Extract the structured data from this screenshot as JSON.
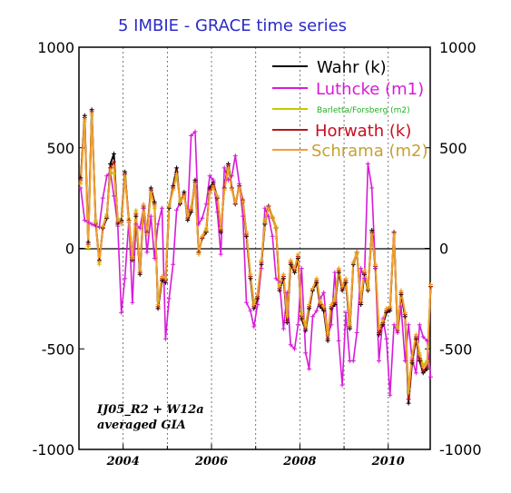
{
  "chart_data": {
    "type": "line",
    "title": "5 IMBIE - GRACE time series",
    "xlabel": "",
    "ylabel": "",
    "xlim": [
      2003.0,
      2010.95
    ],
    "ylim": [
      -1000,
      1000
    ],
    "x_ticks": [
      2004,
      2006,
      2008,
      2010
    ],
    "y_ticks_left": [
      "1000",
      "500",
      "0",
      "-500",
      "-1000"
    ],
    "y_ticks_right": [
      "1000",
      "500",
      "0",
      "-500",
      "-1000"
    ],
    "grid": "vertical dotted lines at yearly intervals",
    "legend_position": "top-right",
    "annotation": [
      "IJ05_R2 + W12a",
      "averaged GIA"
    ],
    "x": [
      2003.04,
      2003.13,
      2003.21,
      2003.29,
      2003.38,
      2003.46,
      2003.54,
      2003.63,
      2003.71,
      2003.79,
      2003.88,
      2003.96,
      2004.04,
      2004.13,
      2004.21,
      2004.29,
      2004.38,
      2004.46,
      2004.54,
      2004.63,
      2004.71,
      2004.79,
      2004.88,
      2004.96,
      2005.04,
      2005.13,
      2005.21,
      2005.29,
      2005.38,
      2005.46,
      2005.54,
      2005.63,
      2005.71,
      2005.79,
      2005.88,
      2005.96,
      2006.04,
      2006.13,
      2006.21,
      2006.29,
      2006.38,
      2006.46,
      2006.54,
      2006.63,
      2006.71,
      2006.79,
      2006.88,
      2006.96,
      2007.04,
      2007.13,
      2007.21,
      2007.29,
      2007.38,
      2007.46,
      2007.54,
      2007.63,
      2007.71,
      2007.79,
      2007.88,
      2007.96,
      2008.04,
      2008.13,
      2008.21,
      2008.29,
      2008.38,
      2008.46,
      2008.54,
      2008.63,
      2008.71,
      2008.79,
      2008.88,
      2008.96,
      2009.04,
      2009.13,
      2009.21,
      2009.29,
      2009.38,
      2009.46,
      2009.54,
      2009.63,
      2009.71,
      2009.79,
      2009.88,
      2009.96,
      2010.04,
      2010.13,
      2010.21,
      2010.29,
      2010.38,
      2010.46,
      2010.54,
      2010.63,
      2010.71,
      2010.79,
      2010.88,
      2010.96
    ],
    "series": [
      {
        "name": "Wahr (k)",
        "color": "#000000",
        "values": [
          350,
          660,
          30,
          690,
          130,
          -60,
          100,
          150,
          420,
          470,
          120,
          140,
          380,
          130,
          -60,
          160,
          -130,
          200,
          80,
          300,
          230,
          -300,
          -160,
          -170,
          200,
          310,
          400,
          220,
          280,
          140,
          180,
          340,
          -20,
          50,
          80,
          300,
          330,
          250,
          80,
          300,
          420,
          300,
          220,
          310,
          230,
          60,
          -150,
          -300,
          -250,
          -80,
          120,
          210,
          150,
          100,
          -210,
          -150,
          -370,
          -80,
          -120,
          -50,
          -350,
          -410,
          -300,
          -210,
          -170,
          -290,
          -310,
          -460,
          -300,
          -280,
          -120,
          -210,
          -170,
          -400,
          -80,
          -20,
          -280,
          -130,
          -210,
          90,
          -100,
          -430,
          -380,
          -320,
          -310,
          80,
          -420,
          -230,
          -340,
          -770,
          -570,
          -450,
          -560,
          -620,
          -600,
          -190
        ]
      },
      {
        "name": "Luthcke (m1)",
        "color": "#d81ad8",
        "values": [
          300,
          140,
          130,
          120,
          110,
          105,
          250,
          360,
          380,
          260,
          110,
          -320,
          -150,
          140,
          -270,
          120,
          100,
          200,
          -20,
          160,
          -50,
          120,
          200,
          -450,
          -250,
          -80,
          190,
          230,
          260,
          170,
          560,
          580,
          120,
          150,
          220,
          360,
          340,
          180,
          -30,
          400,
          340,
          360,
          460,
          320,
          160,
          -270,
          -310,
          -390,
          -280,
          -100,
          200,
          160,
          60,
          -150,
          -170,
          -400,
          -220,
          -480,
          -500,
          -380,
          -100,
          -520,
          -600,
          -340,
          -310,
          -250,
          -220,
          -430,
          -380,
          -120,
          -460,
          -680,
          -320,
          -560,
          -560,
          -420,
          -100,
          -150,
          420,
          300,
          -100,
          -560,
          -350,
          -450,
          -730,
          -380,
          -420,
          -290,
          -560,
          -380,
          -550,
          -620,
          -380,
          -440,
          -460,
          -640
        ]
      },
      {
        "name": "Barletta/Forsberg (m2)",
        "color": "#c8c800",
        "values": [
          320,
          630,
          0,
          660,
          140,
          -80,
          110,
          170,
          380,
          370,
          150,
          130,
          350,
          150,
          -40,
          190,
          -110,
          210,
          70,
          280,
          200,
          -260,
          -140,
          -150,
          220,
          290,
          360,
          240,
          260,
          170,
          210,
          320,
          -30,
          60,
          100,
          280,
          310,
          260,
          100,
          290,
          390,
          300,
          230,
          300,
          240,
          80,
          -130,
          -270,
          -230,
          -60,
          140,
          200,
          160,
          110,
          -180,
          -130,
          -330,
          -60,
          -100,
          -30,
          -320,
          -380,
          -280,
          -200,
          -150,
          -260,
          -290,
          -420,
          -280,
          -250,
          -100,
          -190,
          -150,
          -370,
          -70,
          -30,
          -260,
          -110,
          -190,
          70,
          -90,
          -400,
          -360,
          -300,
          -290,
          70,
          -390,
          -210,
          -320,
          -700,
          -540,
          -430,
          -520,
          -580,
          -560,
          -180
        ]
      },
      {
        "name": "Horwath (k)",
        "color": "#b01818",
        "values": [
          340,
          650,
          20,
          680,
          120,
          -70,
          100,
          160,
          400,
          430,
          130,
          130,
          370,
          140,
          -50,
          170,
          -120,
          210,
          80,
          290,
          220,
          -290,
          -150,
          -160,
          210,
          300,
          380,
          230,
          270,
          150,
          190,
          330,
          -20,
          50,
          90,
          290,
          320,
          250,
          90,
          300,
          410,
          300,
          220,
          310,
          240,
          70,
          -140,
          -290,
          -240,
          -70,
          130,
          210,
          150,
          100,
          -200,
          -140,
          -360,
          -70,
          -110,
          -40,
          -340,
          -400,
          -290,
          -200,
          -160,
          -280,
          -300,
          -450,
          -290,
          -270,
          -110,
          -200,
          -160,
          -390,
          -70,
          -20,
          -270,
          -120,
          -200,
          80,
          -90,
          -420,
          -370,
          -310,
          -300,
          80,
          -410,
          -220,
          -330,
          -750,
          -560,
          -440,
          -550,
          -610,
          -590,
          -190
        ]
      },
      {
        "name": "Schrama (m2)",
        "color": "#f0a030",
        "values": [
          330,
          640,
          10,
          670,
          130,
          -70,
          110,
          160,
          390,
          410,
          140,
          120,
          360,
          130,
          -50,
          180,
          -110,
          220,
          70,
          280,
          210,
          -280,
          -140,
          -150,
          210,
          290,
          370,
          230,
          260,
          160,
          200,
          320,
          -30,
          60,
          90,
          280,
          300,
          260,
          100,
          290,
          400,
          290,
          230,
          300,
          230,
          80,
          -130,
          -280,
          -230,
          -60,
          130,
          200,
          150,
          100,
          -190,
          -130,
          -340,
          -60,
          -100,
          -30,
          -330,
          -390,
          -280,
          -200,
          -150,
          -270,
          -290,
          -430,
          -280,
          -260,
          -100,
          -190,
          -150,
          -380,
          -70,
          -20,
          -260,
          -110,
          -200,
          70,
          -80,
          -400,
          -360,
          -300,
          -290,
          70,
          -400,
          -210,
          -320,
          -720,
          -540,
          -430,
          -530,
          -590,
          -570,
          -180
        ]
      }
    ],
    "legend": [
      {
        "label": "Wahr (k)",
        "color": "#000000"
      },
      {
        "label": "Luthcke (m1)",
        "color": "#d81ad8"
      },
      {
        "label": "Barletta/Forsberg (m2)",
        "color": "#22b022"
      },
      {
        "label": "Horwath (k)",
        "color": "#c81020"
      },
      {
        "label": "Schrama (m2)",
        "color": "#c8a030"
      }
    ]
  }
}
